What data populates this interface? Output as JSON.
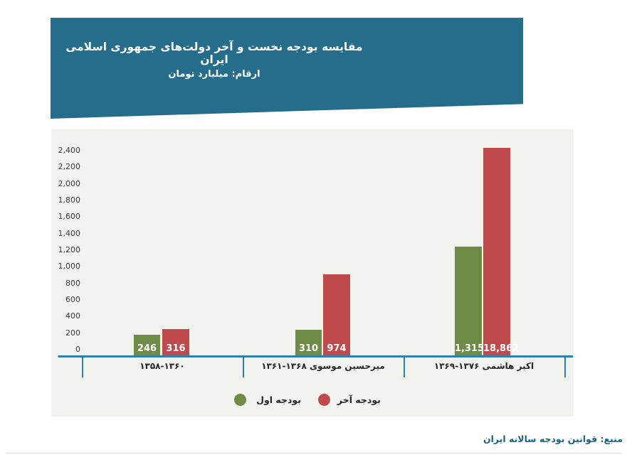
{
  "header": {
    "title": "مقایسه بودجه نخست و آخر دولت‌های جمهوری اسلامی ایران",
    "subtitle": "ارقام: میلیارد تومان"
  },
  "chart_data": {
    "type": "bar",
    "unit": "میلیارد تومان",
    "categories": [
      {
        "name": "",
        "years": "۱۳۵۸-۱۳۶۰"
      },
      {
        "name": "میرحسین موسوی",
        "years": "۱۳۶۱-۱۳۶۸"
      },
      {
        "name": "اکبر هاشمی",
        "years": "۱۳۶۹-۱۳۷۶"
      }
    ],
    "series": [
      {
        "name": "بودجه اول",
        "color": "#6e8a47",
        "values": [
          246,
          310,
          1315
        ],
        "labels": [
          "246",
          "310",
          "1,315"
        ]
      },
      {
        "name": "بودجه آخر",
        "color": "#be4a4c",
        "values": [
          316,
          974,
          18862
        ],
        "labels": [
          "316",
          "974",
          "18,862"
        ]
      }
    ],
    "ylim": [
      0,
      2400
    ],
    "ytick_step": 200,
    "yticks": [
      "0",
      "200",
      "400",
      "600",
      "800",
      "1,000",
      "1,200",
      "1,400",
      "1,600",
      "1,800",
      "2,000",
      "2,200",
      "2,400"
    ],
    "grid": false,
    "legend_position": "bottom",
    "colors": {
      "banner": "#256d8a",
      "plot_background": "#f2f2ee",
      "axis": "#2d80b4",
      "first_budget": "#6e8a47",
      "last_budget": "#be4a4c",
      "source_text": "#186285"
    }
  },
  "legend": {
    "items": [
      {
        "label": "بودجه اول",
        "color": "#6e8a47"
      },
      {
        "label": "بودجه آخر",
        "color": "#be4a4c"
      }
    ]
  },
  "footer": {
    "source": "منبع: قوانین بودجه سالانه ایران"
  }
}
